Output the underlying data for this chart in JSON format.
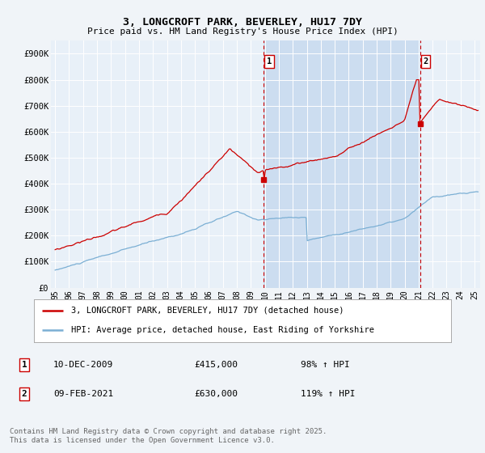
{
  "title": "3, LONGCROFT PARK, BEVERLEY, HU17 7DY",
  "subtitle": "Price paid vs. HM Land Registry's House Price Index (HPI)",
  "background_color": "#f0f4f8",
  "plot_bg_color": "#e8f0f8",
  "shaded_region_color": "#ccddf0",
  "grid_color": "#ffffff",
  "red_line_color": "#cc0000",
  "blue_line_color": "#7bafd4",
  "marker1_x": 2009.92,
  "marker1_y": 415000,
  "marker2_x": 2021.12,
  "marker2_y": 630000,
  "vline1_x": 2009.92,
  "vline2_x": 2021.12,
  "legend_label_red": "3, LONGCROFT PARK, BEVERLEY, HU17 7DY (detached house)",
  "legend_label_blue": "HPI: Average price, detached house, East Riding of Yorkshire",
  "annotation1_date": "10-DEC-2009",
  "annotation1_price": "£415,000",
  "annotation1_hpi": "98% ↑ HPI",
  "annotation2_date": "09-FEB-2021",
  "annotation2_price": "£630,000",
  "annotation2_hpi": "119% ↑ HPI",
  "footer": "Contains HM Land Registry data © Crown copyright and database right 2025.\nThis data is licensed under the Open Government Licence v3.0.",
  "ylim": [
    0,
    950000
  ],
  "yticks": [
    0,
    100000,
    200000,
    300000,
    400000,
    500000,
    600000,
    700000,
    800000,
    900000
  ],
  "ytick_labels": [
    "£0",
    "£100K",
    "£200K",
    "£300K",
    "£400K",
    "£500K",
    "£600K",
    "£700K",
    "£800K",
    "£900K"
  ],
  "xlim": [
    1994.7,
    2025.4
  ],
  "xtick_years": [
    1995,
    1996,
    1997,
    1998,
    1999,
    2000,
    2001,
    2002,
    2003,
    2004,
    2005,
    2006,
    2007,
    2008,
    2009,
    2010,
    2011,
    2012,
    2013,
    2014,
    2015,
    2016,
    2017,
    2018,
    2019,
    2020,
    2021,
    2022,
    2023,
    2024,
    2025
  ]
}
